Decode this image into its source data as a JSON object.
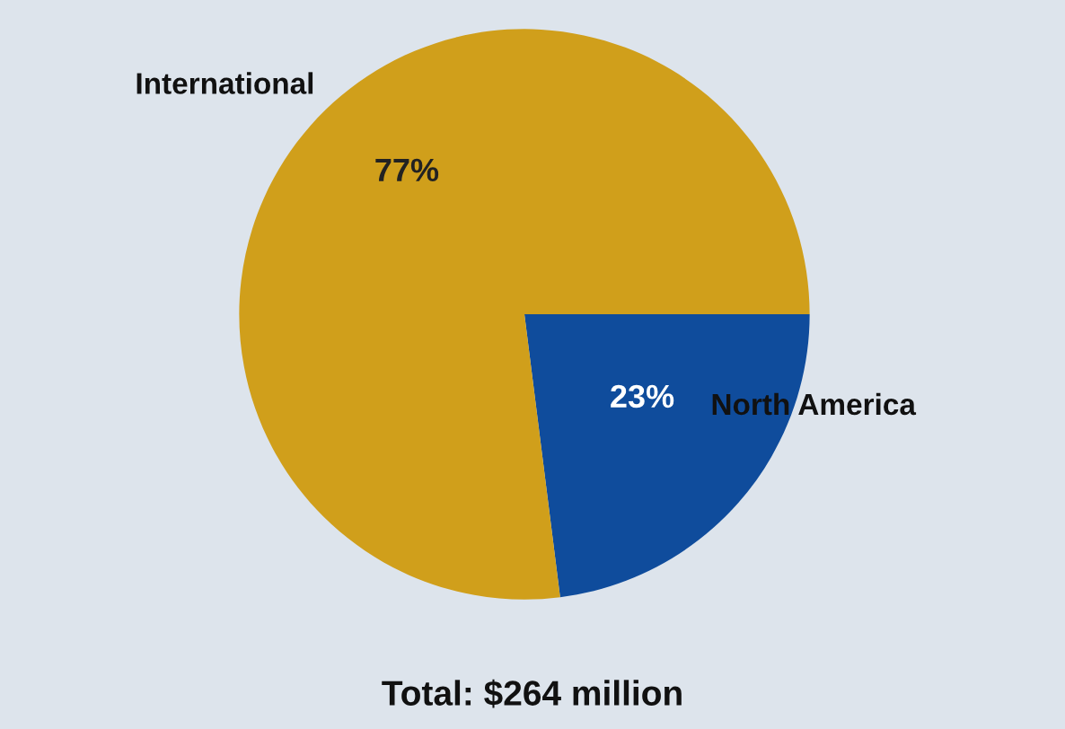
{
  "chart_data": {
    "type": "pie",
    "categories": [
      "North America",
      "International"
    ],
    "values": [
      23,
      77
    ],
    "colors": [
      "#0f4c9c",
      "#d09f1b"
    ],
    "value_labels": [
      "23%",
      "77%"
    ],
    "annotations": [
      "Total: $264 million"
    ]
  }
}
